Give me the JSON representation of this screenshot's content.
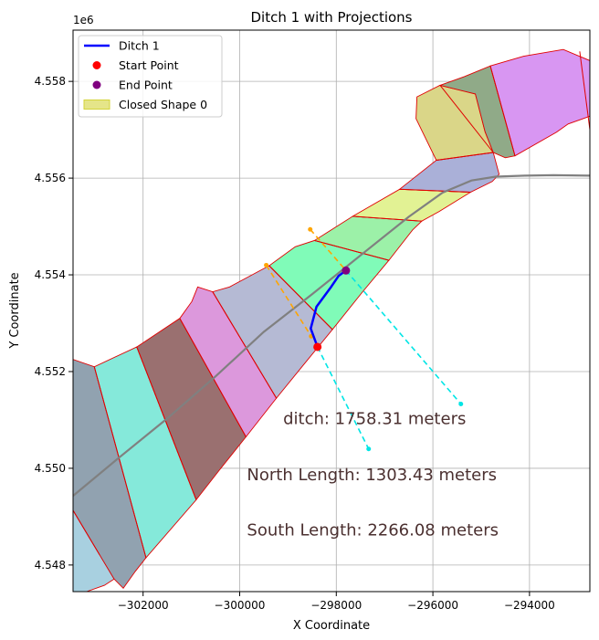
{
  "chart_data": {
    "type": "scatter",
    "title": "Ditch 1 with Projections",
    "xlabel": "X Coordinate",
    "ylabel": "Y Coordinate",
    "y_offset_label": "1e6",
    "xlim": [
      -303450,
      -292750
    ],
    "ylim": [
      4.54745,
      4.55906
    ],
    "y_scale": 1000000,
    "grid": true,
    "x_ticks": [
      -302000,
      -300000,
      -298000,
      -296000,
      -294000
    ],
    "x_tick_labels": [
      "−302000",
      "−300000",
      "−298000",
      "−296000",
      "−294000"
    ],
    "y_ticks": [
      4.548,
      4.55,
      4.552,
      4.554,
      4.556,
      4.558
    ],
    "y_tick_labels": [
      "4.548",
      "4.550",
      "4.552",
      "4.554",
      "4.556",
      "4.558"
    ],
    "legend": {
      "placement": "top-left",
      "entries": [
        {
          "label": "Ditch 1",
          "kind": "line",
          "color": "#0000ff"
        },
        {
          "label": "Start Point",
          "kind": "dot",
          "color": "#ff0000"
        },
        {
          "label": "End Point",
          "kind": "dot",
          "color": "#800080"
        },
        {
          "label": "Closed Shape 0",
          "kind": "patch",
          "color": "#d4d43a"
        }
      ]
    },
    "segment_edge_color": "#e00000",
    "segments": [
      {
        "color": "#a8d0e0",
        "points": [
          [
            -303450,
            4.54836
          ],
          [
            -303450,
            4.54745
          ],
          [
            -303170,
            4.54745
          ],
          [
            -302800,
            4.54758
          ],
          [
            -302600,
            4.54771
          ],
          [
            -302900,
            4.54821
          ],
          [
            -303450,
            4.54913
          ]
        ]
      },
      {
        "color": "#91a2b0",
        "points": [
          [
            -303450,
            4.54913
          ],
          [
            -302900,
            4.54821
          ],
          [
            -302600,
            4.54771
          ],
          [
            -302410,
            4.54752
          ],
          [
            -302160,
            4.54787
          ],
          [
            -301940,
            4.54815
          ],
          [
            -303010,
            4.5521
          ],
          [
            -303450,
            4.55225
          ]
        ]
      },
      {
        "color": "#85e9da",
        "points": [
          [
            -303010,
            4.5521
          ],
          [
            -301940,
            4.54815
          ],
          [
            -300900,
            4.54935
          ],
          [
            -302130,
            4.55251
          ]
        ]
      },
      {
        "color": "#9a7070",
        "points": [
          [
            -302130,
            4.55251
          ],
          [
            -300900,
            4.54935
          ],
          [
            -300430,
            4.54995
          ],
          [
            -299870,
            4.55065
          ],
          [
            -301240,
            4.5531
          ]
        ]
      },
      {
        "color": "#dc98dc",
        "points": [
          [
            -301240,
            4.5531
          ],
          [
            -299870,
            4.55065
          ],
          [
            -299240,
            4.55145
          ],
          [
            -300560,
            4.55365
          ],
          [
            -300870,
            4.55375
          ],
          [
            -300990,
            4.55345
          ]
        ]
      },
      {
        "color": "#b5bad4",
        "points": [
          [
            -300560,
            4.55365
          ],
          [
            -299240,
            4.55145
          ],
          [
            -298710,
            4.5521
          ],
          [
            -298080,
            4.55287
          ],
          [
            -299390,
            4.55419
          ],
          [
            -300210,
            4.55375
          ]
        ]
      },
      {
        "color": "#80fbb8",
        "points": [
          [
            -299390,
            4.55419
          ],
          [
            -298080,
            4.55287
          ],
          [
            -297470,
            4.55363
          ],
          [
            -296910,
            4.5543
          ],
          [
            -298450,
            4.55471
          ],
          [
            -298850,
            4.55458
          ]
        ]
      },
      {
        "color": "#9cf1a8",
        "points": [
          [
            -298450,
            4.55471
          ],
          [
            -296910,
            4.5543
          ],
          [
            -296420,
            4.55493
          ],
          [
            -296230,
            4.55511
          ],
          [
            -297660,
            4.55521
          ]
        ]
      },
      {
        "color": "#e2f294",
        "points": [
          [
            -297660,
            4.55521
          ],
          [
            -296230,
            4.55511
          ],
          [
            -295870,
            4.55531
          ],
          [
            -295220,
            4.55571
          ],
          [
            -296690,
            4.55577
          ]
        ]
      },
      {
        "color": "#aab0d8",
        "points": [
          [
            -296690,
            4.55577
          ],
          [
            -295220,
            4.55571
          ],
          [
            -294770,
            4.55593
          ],
          [
            -294630,
            4.55608
          ],
          [
            -294750,
            4.55653
          ],
          [
            -295930,
            4.55637
          ]
        ]
      },
      {
        "color": "#dad688",
        "points": [
          [
            -295930,
            4.55637
          ],
          [
            -294750,
            4.55653
          ],
          [
            -294920,
            4.55696
          ],
          [
            -295120,
            4.55774
          ],
          [
            -295850,
            4.55792
          ],
          [
            -296330,
            4.55768
          ],
          [
            -296350,
            4.55723
          ]
        ]
      },
      {
        "color": "#90aa88",
        "points": [
          [
            -295850,
            4.55792
          ],
          [
            -295120,
            4.55774
          ],
          [
            -294920,
            4.55696
          ],
          [
            -294750,
            4.55653
          ],
          [
            -294500,
            4.55642
          ],
          [
            -294300,
            4.55646
          ],
          [
            -294810,
            4.55832
          ],
          [
            -295350,
            4.5581
          ]
        ]
      },
      {
        "color": "#d896f2",
        "points": [
          [
            -294810,
            4.55832
          ],
          [
            -294300,
            4.55646
          ],
          [
            -293440,
            4.55695
          ],
          [
            -293200,
            4.55712
          ],
          [
            -292750,
            4.55728
          ],
          [
            -292750,
            4.55843
          ],
          [
            -293300,
            4.55866
          ],
          [
            -294120,
            4.55852
          ]
        ]
      },
      {
        "color": "#f2d8b0",
        "points": [
          [
            -292750,
            4.55843
          ],
          [
            -292750,
            4.55728
          ]
        ]
      }
    ],
    "dividers": [
      [
        [
          -303450,
          4.54913
        ],
        [
          -302900,
          4.54821
        ]
      ],
      [
        [
          -303010,
          4.5521
        ],
        [
          -301940,
          4.54815
        ]
      ],
      [
        [
          -302130,
          4.55251
        ],
        [
          -300900,
          4.54935
        ]
      ],
      [
        [
          -301240,
          4.5531
        ],
        [
          -299870,
          4.55065
        ]
      ],
      [
        [
          -300560,
          4.55365
        ],
        [
          -299240,
          4.55145
        ]
      ],
      [
        [
          -299390,
          4.55419
        ],
        [
          -298080,
          4.55287
        ]
      ],
      [
        [
          -298450,
          4.55471
        ],
        [
          -296910,
          4.5543
        ]
      ],
      [
        [
          -297660,
          4.55521
        ],
        [
          -296230,
          4.55511
        ]
      ],
      [
        [
          -296690,
          4.55577
        ],
        [
          -295220,
          4.55571
        ]
      ],
      [
        [
          -295930,
          4.55637
        ],
        [
          -294750,
          4.55653
        ]
      ],
      [
        [
          -295850,
          4.55792
        ],
        [
          -294750,
          4.55653
        ]
      ],
      [
        [
          -294810,
          4.55832
        ],
        [
          -294300,
          4.55646
        ]
      ],
      [
        [
          -292960,
          4.55862
        ],
        [
          -292750,
          4.557
        ]
      ]
    ],
    "centerline": {
      "color": "#808080",
      "points": [
        [
          -303450,
          4.54943
        ],
        [
          -302500,
          4.55022
        ],
        [
          -301500,
          4.55103
        ],
        [
          -300500,
          4.5519
        ],
        [
          -299500,
          4.55282
        ],
        [
          -298500,
          4.5536
        ],
        [
          -297500,
          4.5544
        ],
        [
          -296500,
          4.5552
        ],
        [
          -295800,
          4.5557
        ],
        [
          -295200,
          4.55595
        ],
        [
          -294700,
          4.55603
        ],
        [
          -294100,
          4.55605
        ],
        [
          -293500,
          4.55606
        ],
        [
          -292750,
          4.55605
        ]
      ]
    },
    "ditch": {
      "name": "Ditch 1",
      "color": "#0000ff",
      "points": [
        [
          -298390,
          4.55251
        ],
        [
          -298530,
          4.55289
        ],
        [
          -298410,
          4.55334
        ],
        [
          -298100,
          4.55376
        ],
        [
          -297950,
          4.55398
        ],
        [
          -297800,
          4.55409
        ]
      ]
    },
    "start_point": {
      "name": "Start Point",
      "x": -298390,
      "y": 4.55251,
      "color": "#ff0000"
    },
    "end_point": {
      "name": "End Point",
      "x": -297800,
      "y": 4.55409,
      "color": "#800080"
    },
    "north_projection": {
      "color": "#ffa500",
      "points": [
        [
          -299450,
          4.5542
        ],
        [
          -298520,
          4.55273
        ],
        [
          -298540,
          4.55494
        ],
        [
          -297800,
          4.55409
        ]
      ]
    },
    "south_projection": {
      "color": "#00e5e5",
      "points": [
        [
          -298390,
          4.55251
        ],
        [
          -297330,
          4.5504
        ],
        [
          -297800,
          4.55409
        ],
        [
          -295420,
          4.55133
        ]
      ]
    },
    "annotations": [
      {
        "text": "ditch: 1758.31 meters",
        "x": -299100,
        "y": 4.55091,
        "color": "#4b3030"
      },
      {
        "text": "North Length: 1303.43 meters",
        "x": -299850,
        "y": 4.54975,
        "color": "#4b3030"
      },
      {
        "text": "South Length: 2266.08 meters",
        "x": -299850,
        "y": 4.54861,
        "color": "#4b3030"
      }
    ]
  }
}
